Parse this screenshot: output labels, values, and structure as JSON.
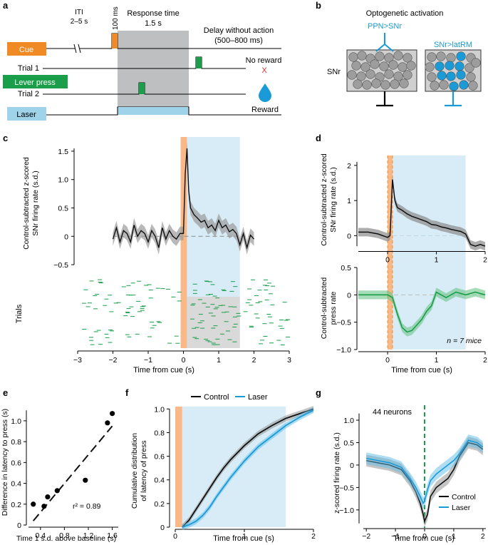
{
  "panel_letters": {
    "a": "a",
    "b": "b",
    "c": "c",
    "d": "d",
    "e": "e",
    "f": "f",
    "g": "g"
  },
  "panel_a": {
    "iti_label": "ITI",
    "iti_range": "2–5 s",
    "cue_duration": "100 ms",
    "response_title": "Response time",
    "response_duration": "1.5 s",
    "delay_title": "Delay without action",
    "delay_range": "(500–800 ms)",
    "cue_label": "Cue",
    "trial1_label": "Trial 1",
    "lever_label": "Lever press",
    "trial2_label": "Trial 2",
    "laser_label": "Laser",
    "no_reward_label": "No reward",
    "no_reward_mark": "X",
    "reward_label": "Reward",
    "colors": {
      "cue": "#f08a24",
      "lever": "#1a9e4a",
      "laser": "#9fd3ea",
      "response": "#bdbfc1",
      "reward": "#1a9bd7",
      "no_reward": "#e03030"
    }
  },
  "panel_b": {
    "title": "Optogenetic activation",
    "region_label": "SNr",
    "left_label": "PPN>SNr",
    "right_label": "SNr>latRM",
    "label_color": "#1a9bd7"
  },
  "panel_c": {
    "ylabel_line1": "Control-subtracted z-scored",
    "ylabel_line2": "SNr firing rate (s.d.)",
    "raster_ylabel": "Trials",
    "xlabel": "Time from cue (s)",
    "yticks": [
      "1.5",
      "1.0",
      "0.5",
      "0",
      "−0.5"
    ],
    "xticks": [
      "−3",
      "−2",
      "−1",
      "0",
      "1",
      "2",
      "3"
    ]
  },
  "panel_d": {
    "top_ylabel_line1": "Control-subtracted z-scored",
    "top_ylabel_line2": "SNr firing rate (s.d.)",
    "top_yticks": [
      "2",
      "1",
      "0"
    ],
    "top_xticks": [
      "0",
      "1",
      "2"
    ],
    "bottom_ylabel_line1": "Control-subtracted",
    "bottom_ylabel_line2": "press rate",
    "bottom_yticks": [
      "0.5",
      "0",
      "−0.5",
      "−1.0"
    ],
    "bottom_xticks": [
      "0",
      "1",
      "2"
    ],
    "n_label": "n = 7 mice",
    "xlabel": "Time from cue (s)"
  },
  "panel_e": {
    "ylabel": "Difference in latency to press (s)",
    "xlabel": "Time 1 s.d. above baseline (s)",
    "r2_label": "r² = 0.89",
    "yticks": [
      "0",
      "0.2",
      "0.4",
      "0.6",
      "0.8",
      "1.0"
    ],
    "xticks": [
      "0.4",
      "0.8",
      "1.2",
      "1.6"
    ]
  },
  "panel_f": {
    "ylabel_line1": "Cumulative distribution",
    "ylabel_line2": "of latency of press",
    "xlabel": "Time from cue (s)",
    "legend_control": "Control",
    "legend_laser": "Laser",
    "yticks": [
      "0",
      "0.2",
      "0.4",
      "0.6",
      "0.8",
      "1.0"
    ],
    "xticks": [
      "0",
      "1",
      "2"
    ]
  },
  "panel_g": {
    "ylabel": "z-scored firing rate (s.d.)",
    "xlabel": "Time from cue (s)",
    "neurons_label": "44 neurons",
    "legend_control": "Control",
    "legend_laser": "Laser",
    "yticks": [
      "1.0",
      "0.5",
      "0",
      "−0.5",
      "−1.0"
    ],
    "xticks": [
      "−2",
      "−1",
      "0",
      "1",
      "2"
    ]
  },
  "chart_data": [
    {
      "panel": "c",
      "type": "line",
      "title": "",
      "xlabel": "Time from cue (s)",
      "ylabel": "Control-subtracted z-scored SNr firing rate (s.d.)",
      "xlim": [
        -3,
        3
      ],
      "ylim": [
        -0.6,
        1.65
      ],
      "x": [
        -2.0,
        -1.9,
        -1.8,
        -1.7,
        -1.6,
        -1.5,
        -1.4,
        -1.3,
        -1.2,
        -1.1,
        -1.0,
        -0.9,
        -0.8,
        -0.7,
        -0.6,
        -0.5,
        -0.4,
        -0.3,
        -0.2,
        -0.1,
        0.0,
        0.05,
        0.1,
        0.15,
        0.2,
        0.3,
        0.4,
        0.5,
        0.6,
        0.7,
        0.8,
        0.9,
        1.0,
        1.1,
        1.2,
        1.3,
        1.4,
        1.5,
        1.6,
        1.7,
        1.8,
        1.9,
        2.0
      ],
      "values": [
        -0.05,
        0.15,
        -0.1,
        0.1,
        0.05,
        -0.1,
        0.2,
        0.0,
        0.1,
        0.05,
        -0.1,
        0.1,
        0.0,
        -0.2,
        0.15,
        -0.05,
        0.1,
        0.0,
        -0.05,
        0.05,
        0.05,
        1.1,
        1.55,
        0.8,
        0.5,
        0.38,
        0.32,
        0.25,
        0.28,
        0.15,
        0.2,
        0.1,
        0.28,
        0.15,
        0.2,
        0.08,
        0.12,
        0.05,
        -0.15,
        0.05,
        -0.2,
        0.02,
        -0.05
      ],
      "error": 0.12,
      "shaded_cue": [
        0,
        0.1
      ],
      "shaded_laser": [
        0.1,
        1.6
      ],
      "raster": "spike ticks across trials; laser trials highlighted gray from 0.1–1.6 s"
    },
    {
      "panel": "d-top",
      "type": "line",
      "xlabel": "Time from cue (s)",
      "ylabel": "Control-subtracted z-scored SNr firing rate (s.d.)",
      "xlim": [
        -0.6,
        2.0
      ],
      "ylim": [
        -0.5,
        2.2
      ],
      "x": [
        -0.6,
        -0.4,
        -0.2,
        0.0,
        0.05,
        0.1,
        0.15,
        0.2,
        0.3,
        0.4,
        0.5,
        0.6,
        0.7,
        0.8,
        0.9,
        1.0,
        1.1,
        1.2,
        1.3,
        1.4,
        1.5,
        1.6,
        1.7,
        1.8,
        1.9,
        2.0
      ],
      "values": [
        0.1,
        0.1,
        0.05,
        -0.05,
        0.0,
        1.6,
        1.0,
        0.8,
        0.72,
        0.62,
        0.55,
        0.5,
        0.45,
        0.4,
        0.32,
        0.3,
        0.25,
        0.22,
        0.18,
        0.15,
        0.12,
        0.05,
        -0.25,
        -0.3,
        -0.25,
        -0.3
      ],
      "error": 0.12
    },
    {
      "panel": "d-bottom",
      "type": "line",
      "xlabel": "Time from cue (s)",
      "ylabel": "Control-subtracted press rate",
      "xlim": [
        -0.6,
        2.0
      ],
      "ylim": [
        -1.0,
        0.5
      ],
      "x": [
        -0.6,
        0.0,
        0.1,
        0.2,
        0.3,
        0.4,
        0.5,
        0.6,
        0.7,
        0.8,
        0.9,
        1.0,
        1.2,
        1.4,
        1.6,
        1.8,
        2.0
      ],
      "values": [
        0.0,
        0.0,
        -0.05,
        -0.35,
        -0.6,
        -0.68,
        -0.65,
        -0.55,
        -0.45,
        -0.3,
        -0.2,
        0.05,
        -0.05,
        0.05,
        0.0,
        0.05,
        0.0
      ],
      "error": 0.08,
      "annotation": "n = 7 mice"
    },
    {
      "panel": "e",
      "type": "scatter",
      "xlabel": "Time 1 s.d. above baseline (s)",
      "ylabel": "Difference in latency to press (s)",
      "x": [
        0.28,
        0.46,
        0.52,
        0.68,
        1.15,
        1.52,
        1.6
      ],
      "values": [
        0.2,
        0.18,
        0.27,
        0.33,
        0.43,
        0.98,
        1.07
      ],
      "fit_line": {
        "x": [
          0.28,
          1.6
        ],
        "y": [
          0.04,
          0.95
        ]
      },
      "r2": 0.89,
      "xlim": [
        0.2,
        1.7
      ],
      "ylim": [
        0,
        1.15
      ]
    },
    {
      "panel": "f",
      "type": "line",
      "xlabel": "Time from cue (s)",
      "ylabel": "Cumulative distribution of latency of press",
      "xlim": [
        0,
        2
      ],
      "ylim": [
        0,
        1.05
      ],
      "series": [
        {
          "name": "Control",
          "x": [
            0.1,
            0.2,
            0.3,
            0.4,
            0.5,
            0.6,
            0.7,
            0.8,
            0.9,
            1.0,
            1.1,
            1.2,
            1.4,
            1.6,
            1.8,
            2.0
          ],
          "values": [
            0.0,
            0.06,
            0.15,
            0.24,
            0.33,
            0.42,
            0.5,
            0.57,
            0.63,
            0.69,
            0.74,
            0.79,
            0.86,
            0.92,
            0.96,
            1.0
          ]
        },
        {
          "name": "Laser",
          "x": [
            0.1,
            0.2,
            0.3,
            0.4,
            0.5,
            0.6,
            0.7,
            0.8,
            0.9,
            1.0,
            1.1,
            1.2,
            1.4,
            1.6,
            1.8,
            2.0
          ],
          "values": [
            0.0,
            0.02,
            0.05,
            0.1,
            0.17,
            0.26,
            0.34,
            0.42,
            0.49,
            0.56,
            0.62,
            0.68,
            0.77,
            0.86,
            0.93,
            0.99
          ]
        }
      ],
      "shaded_cue": [
        0,
        0.1
      ],
      "shaded_laser": [
        0.1,
        1.6
      ]
    },
    {
      "panel": "g",
      "type": "line",
      "xlabel": "Time from cue (s)",
      "ylabel": "z-scored firing rate (s.d.)",
      "xlim": [
        -2.2,
        2.2
      ],
      "ylim": [
        -1.4,
        1.35
      ],
      "annotation": "44 neurons",
      "series": [
        {
          "name": "Control",
          "x": [
            -2.0,
            -1.6,
            -1.2,
            -0.8,
            -0.5,
            -0.3,
            -0.15,
            -0.05,
            0.0,
            0.1,
            0.2,
            0.4,
            0.6,
            0.8,
            1.0,
            1.2,
            1.5,
            1.8,
            2.0
          ],
          "values": [
            0.1,
            0.05,
            0.0,
            -0.1,
            -0.35,
            -0.6,
            -0.85,
            -1.1,
            -1.25,
            -1.1,
            -0.7,
            -0.5,
            -0.4,
            -0.3,
            -0.1,
            0.2,
            0.5,
            0.45,
            0.35
          ]
        },
        {
          "name": "Laser",
          "x": [
            -2.0,
            -1.6,
            -1.2,
            -0.8,
            -0.5,
            -0.3,
            -0.15,
            -0.05,
            0.0,
            0.1,
            0.2,
            0.4,
            0.6,
            0.8,
            1.0,
            1.2,
            1.5,
            1.8,
            2.0
          ],
          "values": [
            0.15,
            0.1,
            0.05,
            -0.05,
            -0.3,
            -0.5,
            -0.7,
            -0.85,
            -0.8,
            -0.55,
            -0.35,
            -0.2,
            -0.1,
            0.0,
            0.1,
            0.25,
            0.55,
            0.5,
            0.4
          ]
        }
      ],
      "marker_line_x": 0
    }
  ]
}
